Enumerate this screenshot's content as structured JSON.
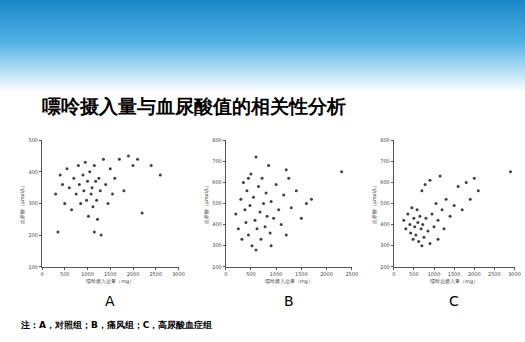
{
  "title": "嘌呤摄入量与血尿酸值的相关性分析",
  "note": "注：A，对照组；B，痛风组；C，高尿酸血症组",
  "chart_data": [
    {
      "type": "scatter",
      "caption": "A",
      "x_label": "嘌呤摄入总量（mg）",
      "y_label": "血尿酸（μmol/L）",
      "color": "#404040",
      "marker": "circle",
      "x": [
        300,
        400,
        450,
        500,
        550,
        600,
        650,
        700,
        750,
        800,
        820,
        850,
        900,
        920,
        950,
        980,
        1000,
        1020,
        1050,
        1080,
        1100,
        1120,
        1150,
        1180,
        1200,
        1220,
        1250,
        1280,
        1300,
        1350,
        1400,
        1450,
        1500,
        1550,
        1600,
        1700,
        1800,
        1900,
        2000,
        2100,
        2200,
        2400,
        2600,
        350,
        1150
      ],
      "y": [
        330,
        390,
        360,
        300,
        410,
        350,
        280,
        380,
        330,
        420,
        360,
        300,
        390,
        340,
        430,
        310,
        370,
        260,
        400,
        330,
        350,
        290,
        420,
        370,
        310,
        250,
        380,
        340,
        200,
        440,
        360,
        300,
        410,
        330,
        380,
        440,
        340,
        450,
        420,
        440,
        270,
        420,
        390,
        210,
        210
      ],
      "xlim": [
        0,
        3000
      ],
      "xticks": [
        0,
        500,
        1000,
        1500,
        2000,
        2500,
        3000
      ],
      "ylim": [
        100,
        500
      ],
      "yticks": [
        100,
        200,
        300,
        400,
        500
      ]
    },
    {
      "type": "scatter",
      "caption": "B",
      "x_label": "嘌呤摄入总量（mg）",
      "y_label": "血尿酸（μmol/L）",
      "color": "#404040",
      "marker": "circle",
      "x": [
        200,
        250,
        300,
        320,
        350,
        380,
        400,
        420,
        450,
        480,
        500,
        520,
        550,
        580,
        600,
        620,
        650,
        680,
        700,
        720,
        750,
        780,
        800,
        820,
        850,
        880,
        900,
        950,
        1000,
        1050,
        1100,
        1150,
        1200,
        1250,
        1300,
        1400,
        1500,
        1600,
        1700,
        2300,
        600,
        450,
        900,
        1200
      ],
      "y": [
        450,
        380,
        520,
        330,
        600,
        470,
        410,
        560,
        350,
        490,
        640,
        300,
        530,
        420,
        720,
        380,
        580,
        460,
        330,
        620,
        500,
        390,
        550,
        440,
        680,
        360,
        510,
        430,
        590,
        470,
        400,
        540,
        350,
        620,
        480,
        560,
        430,
        500,
        520,
        650,
        280,
        620,
        300,
        660
      ],
      "xlim": [
        0,
        2500
      ],
      "xticks": [
        0,
        500,
        1000,
        1500,
        2000,
        2500
      ],
      "ylim": [
        200,
        800
      ],
      "yticks": [
        200,
        300,
        400,
        500,
        600,
        700,
        800
      ]
    },
    {
      "type": "scatter",
      "caption": "C",
      "x_label": "嘌呤总摄入量（mg）",
      "y_label": "血尿酸（μmol/L）",
      "color": "#404040",
      "marker": "circle",
      "x": [
        250,
        300,
        350,
        400,
        420,
        450,
        480,
        500,
        520,
        550,
        580,
        600,
        620,
        650,
        680,
        700,
        720,
        750,
        780,
        800,
        850,
        900,
        950,
        1000,
        1050,
        1100,
        1150,
        1200,
        1250,
        1300,
        1400,
        1500,
        1600,
        1700,
        1800,
        1900,
        2000,
        2100,
        2900,
        700,
        900,
        1100
      ],
      "y": [
        420,
        380,
        450,
        400,
        360,
        480,
        330,
        430,
        390,
        350,
        470,
        410,
        320,
        440,
        380,
        560,
        400,
        340,
        590,
        430,
        370,
        610,
        450,
        390,
        500,
        420,
        630,
        470,
        380,
        520,
        440,
        490,
        580,
        470,
        600,
        520,
        620,
        560,
        650,
        300,
        310,
        330
      ],
      "xlim": [
        0,
        3000
      ],
      "xticks": [
        0,
        500,
        1000,
        1500,
        2000,
        2500,
        3000
      ],
      "ylim": [
        200,
        800
      ],
      "yticks": [
        200,
        300,
        400,
        500,
        600,
        700,
        800
      ]
    }
  ]
}
